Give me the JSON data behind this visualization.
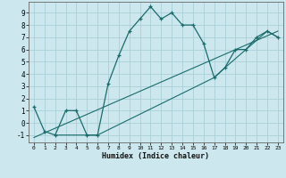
{
  "xlabel": "Humidex (Indice chaleur)",
  "bg_color": "#cce8ee",
  "line_color": "#1a6b6b",
  "grid_color": "#aacfd8",
  "xlim": [
    -0.5,
    23.5
  ],
  "ylim": [
    -1.6,
    9.9
  ],
  "yticks": [
    -1,
    0,
    1,
    2,
    3,
    4,
    5,
    6,
    7,
    8,
    9
  ],
  "xticks": [
    0,
    1,
    2,
    3,
    4,
    5,
    6,
    7,
    8,
    9,
    10,
    11,
    12,
    13,
    14,
    15,
    16,
    17,
    18,
    19,
    20,
    21,
    22,
    23
  ],
  "curve1_x": [
    0,
    1,
    2,
    3,
    4,
    5,
    6,
    7,
    8,
    9,
    10,
    11,
    12,
    13,
    14,
    15,
    16,
    17,
    18,
    19,
    20,
    21,
    22,
    23
  ],
  "curve1_y": [
    1.3,
    -0.7,
    -1.0,
    1.0,
    1.0,
    -1.0,
    -1.0,
    3.2,
    5.5,
    7.5,
    8.5,
    9.5,
    8.5,
    9.0,
    8.0,
    8.0,
    6.5,
    3.7,
    4.5,
    6.0,
    6.0,
    7.0,
    7.5,
    7.0
  ],
  "line2_x": [
    0,
    23
  ],
  "line2_y": [
    -1.2,
    7.5
  ],
  "line3_x": [
    2,
    6,
    17,
    18,
    22,
    23
  ],
  "line3_y": [
    -1.0,
    -1.0,
    3.7,
    4.5,
    7.5,
    7.0
  ]
}
